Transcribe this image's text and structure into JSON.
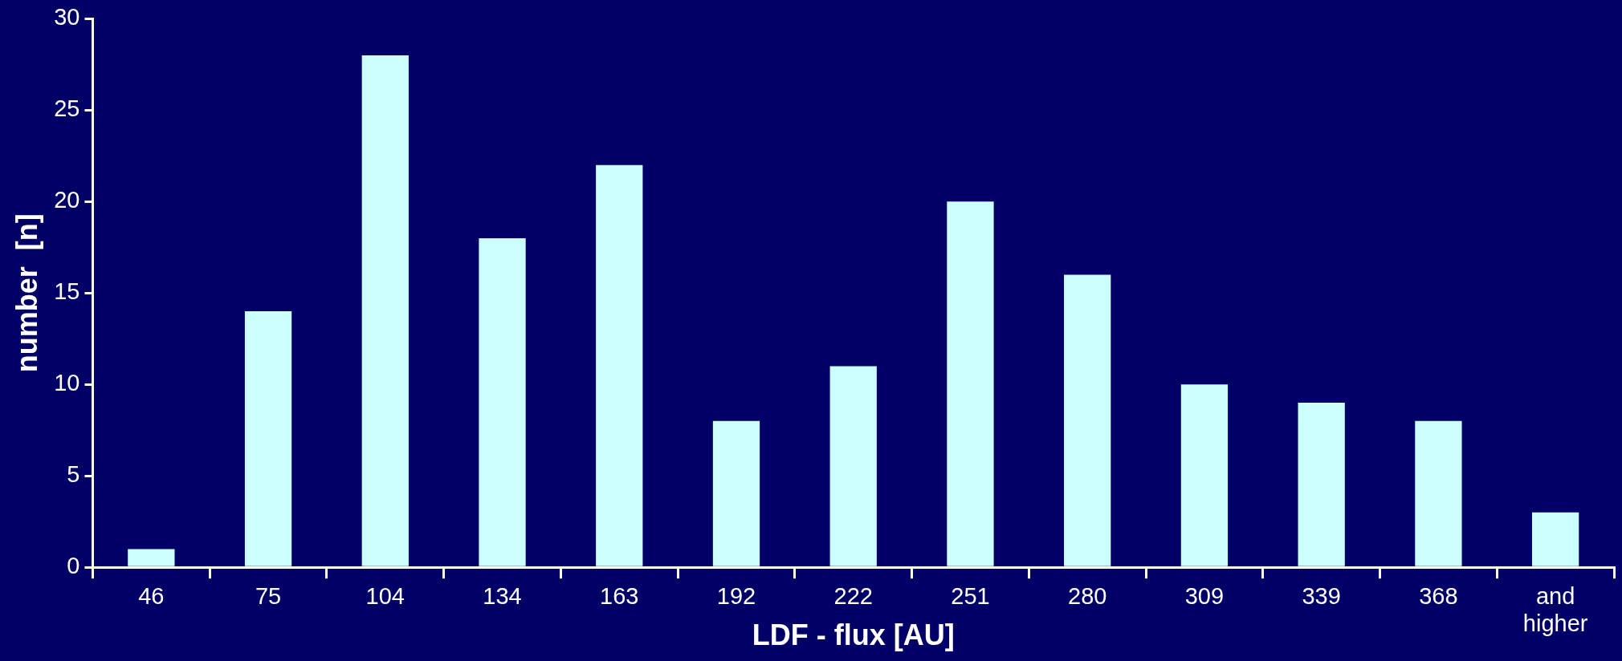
{
  "chart_data": {
    "type": "bar",
    "xlabel": "LDF - flux [AU]",
    "ylabel": "number  [n]",
    "categories": [
      "46",
      "75",
      "104",
      "134",
      "163",
      "192",
      "222",
      "251",
      "280",
      "309",
      "339",
      "368",
      "and higher"
    ],
    "values": [
      1,
      14,
      28,
      18,
      22,
      8,
      11,
      20,
      16,
      10,
      9,
      8,
      3
    ],
    "color": "#ccffff",
    "ylim": [
      0,
      30
    ],
    "yticks": [
      0,
      5,
      10,
      15,
      20,
      25,
      30
    ],
    "grid": false,
    "legend": false
  }
}
